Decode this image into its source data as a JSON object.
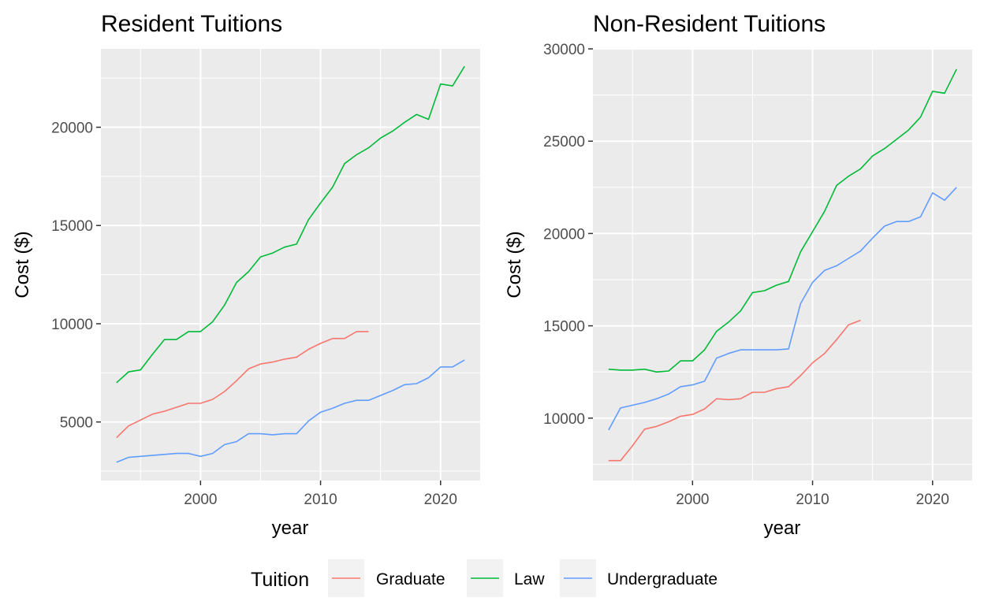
{
  "legend": {
    "title": "Tuition",
    "placement": "bottom",
    "entries": [
      {
        "name": "Graduate",
        "color": "#F8766D"
      },
      {
        "name": "Law",
        "color": "#00BA38"
      },
      {
        "name": "Undergraduate",
        "color": "#619CFF"
      }
    ]
  },
  "chart_data": [
    {
      "type": "line",
      "title": "Resident Tuitions",
      "xlabel": "year",
      "ylabel": "Cost ($)",
      "xlim": [
        1991.7,
        2023.3
      ],
      "ylim": [
        2020,
        23990
      ],
      "xticks": [
        2000,
        2010,
        2020
      ],
      "xtick_labels": [
        "2000",
        "2010",
        "2020"
      ],
      "yticks": [
        5000,
        10000,
        15000,
        20000
      ],
      "ytick_labels": [
        "5000",
        "10000",
        "15000",
        "20000"
      ],
      "grid": true,
      "series": [
        {
          "name": "Graduate",
          "color": "#F8766D",
          "x": [
            1993,
            1994,
            1995,
            1996,
            1997,
            1998,
            1999,
            2000,
            2001,
            2002,
            2003,
            2004,
            2005,
            2006,
            2007,
            2008,
            2009,
            2010,
            2011,
            2012,
            2013,
            2014
          ],
          "y": [
            4200,
            4800,
            5100,
            5400,
            5550,
            5750,
            5950,
            5950,
            6150,
            6550,
            7100,
            7700,
            7950,
            8050,
            8200,
            8300,
            8700,
            9000,
            9250,
            9250,
            9600,
            9600
          ]
        },
        {
          "name": "Law",
          "color": "#00BA38",
          "x": [
            1993,
            1994,
            1995,
            1996,
            1997,
            1998,
            1999,
            2000,
            2001,
            2002,
            2003,
            2004,
            2005,
            2006,
            2007,
            2008,
            2009,
            2010,
            2011,
            2012,
            2013,
            2014,
            2015,
            2016,
            2017,
            2018,
            2019,
            2020,
            2021,
            2022
          ],
          "y": [
            7000,
            7550,
            7650,
            8450,
            9200,
            9200,
            9600,
            9600,
            10100,
            10950,
            12100,
            12650,
            13400,
            13600,
            13900,
            14050,
            15300,
            16150,
            16950,
            18150,
            18600,
            18950,
            19450,
            19800,
            20250,
            20650,
            20400,
            22200,
            22100,
            23100
          ]
        },
        {
          "name": "Undergraduate",
          "color": "#619CFF",
          "x": [
            1993,
            1994,
            1995,
            1996,
            1997,
            1998,
            1999,
            2000,
            2001,
            2002,
            2003,
            2004,
            2005,
            2006,
            2007,
            2008,
            2009,
            2010,
            2011,
            2012,
            2013,
            2014,
            2015,
            2016,
            2017,
            2018,
            2019,
            2020,
            2021,
            2022
          ],
          "y": [
            2950,
            3200,
            3250,
            3300,
            3350,
            3400,
            3400,
            3250,
            3400,
            3850,
            4000,
            4400,
            4400,
            4350,
            4400,
            4400,
            5050,
            5500,
            5700,
            5950,
            6100,
            6100,
            6350,
            6600,
            6900,
            6950,
            7250,
            7800,
            7800,
            8150
          ]
        }
      ]
    },
    {
      "type": "line",
      "title": "Non-Resident Tuitions",
      "xlabel": "year",
      "ylabel": "Cost ($)",
      "xlim": [
        1991.7,
        2023.3
      ],
      "ylim": [
        6620,
        30000
      ],
      "xticks": [
        2000,
        2010,
        2020
      ],
      "xtick_labels": [
        "2000",
        "2010",
        "2020"
      ],
      "yticks": [
        10000,
        15000,
        20000,
        25000,
        30000
      ],
      "ytick_labels": [
        "10000",
        "15000",
        "20000",
        "25000",
        "30000"
      ],
      "grid": true,
      "series": [
        {
          "name": "Graduate",
          "color": "#F8766D",
          "x": [
            1993,
            1994,
            1995,
            1996,
            1997,
            1998,
            1999,
            2000,
            2001,
            2002,
            2003,
            2004,
            2005,
            2006,
            2007,
            2008,
            2009,
            2010,
            2011,
            2012,
            2013,
            2014
          ],
          "y": [
            7700,
            7700,
            8500,
            9400,
            9550,
            9800,
            10100,
            10200,
            10500,
            11050,
            11000,
            11050,
            11400,
            11400,
            11600,
            11700,
            12300,
            13000,
            13500,
            14250,
            15050,
            15300
          ]
        },
        {
          "name": "Law",
          "color": "#00BA38",
          "x": [
            1993,
            1994,
            1995,
            1996,
            1997,
            1998,
            1999,
            2000,
            2001,
            2002,
            2003,
            2004,
            2005,
            2006,
            2007,
            2008,
            2009,
            2010,
            2011,
            2012,
            2013,
            2014,
            2015,
            2016,
            2017,
            2018,
            2019,
            2020,
            2021,
            2022
          ],
          "y": [
            12650,
            12600,
            12600,
            12650,
            12500,
            12550,
            13100,
            13100,
            13700,
            14700,
            15200,
            15800,
            16800,
            16900,
            17200,
            17400,
            19000,
            20100,
            21200,
            22600,
            23100,
            23500,
            24200,
            24600,
            25100,
            25600,
            26300,
            27700,
            27600,
            28900
          ]
        },
        {
          "name": "Undergraduate",
          "color": "#619CFF",
          "x": [
            1993,
            1994,
            1995,
            1996,
            1997,
            1998,
            1999,
            2000,
            2001,
            2002,
            2003,
            2004,
            2005,
            2006,
            2007,
            2008,
            2009,
            2010,
            2011,
            2012,
            2013,
            2014,
            2015,
            2016,
            2017,
            2018,
            2019,
            2020,
            2021,
            2022
          ],
          "y": [
            9350,
            10550,
            10700,
            10850,
            11050,
            11300,
            11700,
            11800,
            12000,
            13250,
            13500,
            13700,
            13700,
            13700,
            13700,
            13750,
            16200,
            17350,
            18000,
            18250,
            18650,
            19050,
            19750,
            20400,
            20650,
            20650,
            20900,
            22200,
            21800,
            22500
          ]
        }
      ]
    }
  ]
}
